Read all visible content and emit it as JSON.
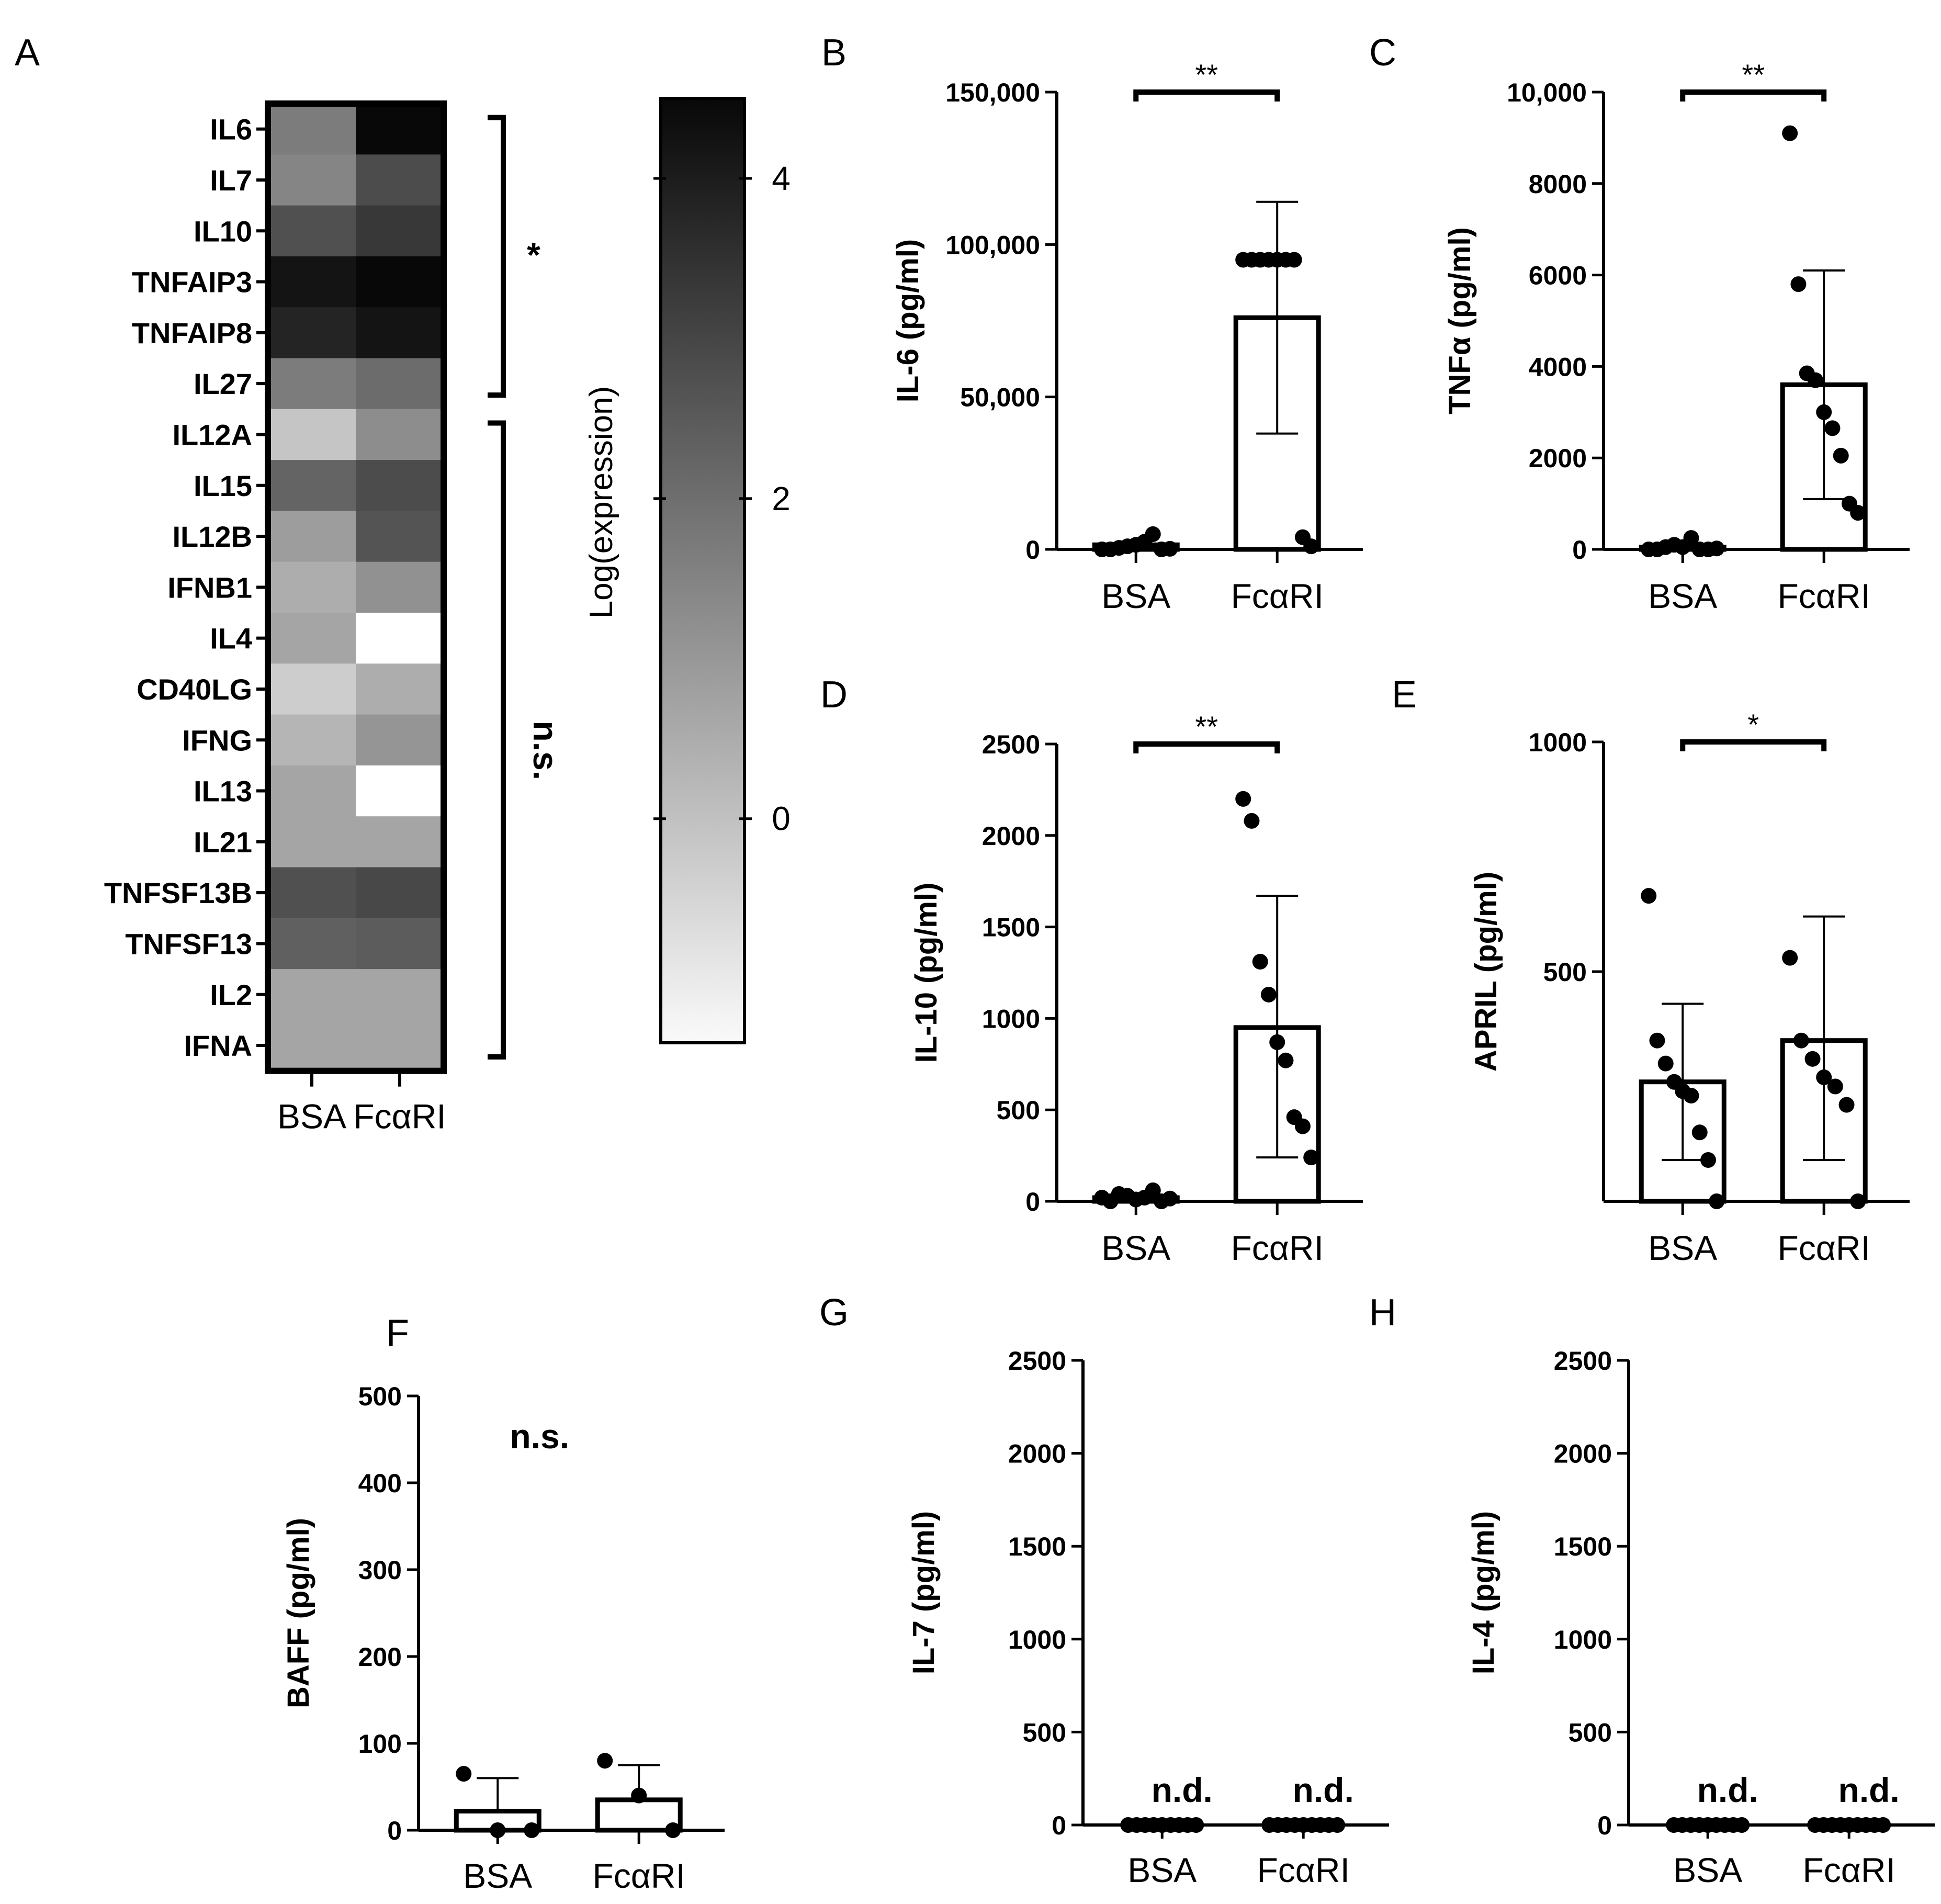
{
  "chart_data": [
    {
      "panel": "A",
      "type": "heatmap",
      "rows": [
        "IL6",
        "IL7",
        "IL10",
        "TNFAIP3",
        "TNFAIP8",
        "IL27",
        "IL12A",
        "IL15",
        "IL12B",
        "IFNB1",
        "IL4",
        "CD40LG",
        "IFNG",
        "IL13",
        "IL21",
        "TNFSF13B",
        "TNFSF13",
        "IL2",
        "IFNA"
      ],
      "columns": [
        "BSA",
        "FcαRI"
      ],
      "values": [
        [
          1.6,
          4.5
        ],
        [
          1.4,
          2.8
        ],
        [
          2.7,
          3.3
        ],
        [
          4.2,
          4.7
        ],
        [
          3.8,
          4.2
        ],
        [
          1.6,
          2.0
        ],
        [
          -0.2,
          1.2
        ],
        [
          2.2,
          2.8
        ],
        [
          0.8,
          2.6
        ],
        [
          0.4,
          1.1
        ],
        [
          0.6,
          null
        ],
        [
          -0.4,
          0.4
        ],
        [
          0.2,
          1.0
        ],
        [
          0.6,
          null
        ],
        [
          0.6,
          0.6
        ],
        [
          2.7,
          2.9
        ],
        [
          2.3,
          2.4
        ],
        [
          0.6,
          0.6
        ],
        [
          0.6,
          0.6
        ]
      ],
      "colorbar": {
        "label": "Log(expression)",
        "ticks": [
          4,
          2,
          0
        ],
        "range": [
          -1.4,
          4.5
        ]
      },
      "groups": [
        {
          "label": "*",
          "rows": [
            "IL6",
            "IL27"
          ]
        },
        {
          "label": "n.s.",
          "rows": [
            "IL12A",
            "IFNA"
          ]
        }
      ]
    },
    {
      "panel": "B",
      "type": "bar",
      "categories": [
        "BSA",
        "FcαRI"
      ],
      "ylabel": "IL-6 (pg/ml)",
      "ylim": [
        0,
        150000
      ],
      "yticks": [
        "0",
        "50,000",
        "100,000",
        "150,000"
      ],
      "yticks_values": [
        0,
        50000,
        100000,
        150000
      ],
      "values": [
        1500,
        76000
      ],
      "err_high": [
        null,
        114000
      ],
      "err_low": [
        null,
        38000
      ],
      "points": [
        [
          0,
          0,
          500,
          1000,
          1500,
          2500,
          5000,
          0,
          200
        ],
        [
          95000,
          95000,
          95000,
          95000,
          95000,
          95000,
          95000,
          4000,
          1000
        ]
      ],
      "significance": "**",
      "annotations": []
    },
    {
      "panel": "C",
      "type": "bar",
      "categories": [
        "BSA",
        "FcαRI"
      ],
      "ylabel": "TNFα (pg/ml)",
      "ylim": [
        0,
        10000
      ],
      "yticks": [
        "0",
        "2000",
        "4000",
        "6000",
        "8000",
        "10,000"
      ],
      "yticks_values": [
        0,
        2000,
        4000,
        6000,
        8000,
        10000
      ],
      "values": [
        50,
        3600
      ],
      "err_high": [
        null,
        6100
      ],
      "err_low": [
        null,
        1100
      ],
      "points": [
        [
          0,
          0,
          50,
          100,
          50,
          250,
          0,
          0,
          20
        ],
        [
          9100,
          5800,
          3850,
          3700,
          3000,
          2650,
          2050,
          1000,
          800
        ]
      ],
      "significance": "**",
      "annotations": []
    },
    {
      "panel": "D",
      "type": "bar",
      "categories": [
        "BSA",
        "FcαRI"
      ],
      "ylabel": "IL-10 (pg/ml)",
      "ylim": [
        0,
        2500
      ],
      "yticks": [
        "0",
        "500",
        "1000",
        "1500",
        "2000",
        "2500"
      ],
      "yticks_values": [
        0,
        500,
        1000,
        1500,
        2000,
        2500
      ],
      "values": [
        20,
        950
      ],
      "err_high": [
        null,
        1670
      ],
      "err_low": [
        null,
        240
      ],
      "points": [
        [
          20,
          0,
          40,
          30,
          10,
          20,
          60,
          0,
          15
        ],
        [
          2200,
          2080,
          1310,
          1130,
          870,
          770,
          460,
          410,
          240
        ]
      ],
      "significance": "**",
      "annotations": []
    },
    {
      "panel": "E",
      "type": "bar",
      "categories": [
        "BSA",
        "FcαRI"
      ],
      "ylabel": "APRIL (pg/ml)",
      "ylim": [
        0,
        1000
      ],
      "yticks": [
        "500",
        "1000"
      ],
      "yticks_values": [
        500,
        1000
      ],
      "values": [
        260,
        350
      ],
      "err_high": [
        430,
        620
      ],
      "err_low": [
        90,
        90
      ],
      "points": [
        [
          665,
          350,
          300,
          260,
          240,
          230,
          150,
          90,
          0
        ],
        [
          530,
          350,
          310,
          270,
          250,
          210,
          0
        ]
      ],
      "significance": "*",
      "annotations": []
    },
    {
      "panel": "F",
      "type": "bar",
      "categories": [
        "BSA",
        "FcαRI"
      ],
      "ylabel": "BAFF (pg/ml)",
      "ylim": [
        0,
        500
      ],
      "yticks": [
        "0",
        "100",
        "200",
        "300",
        "400",
        "500"
      ],
      "yticks_values": [
        0,
        100,
        200,
        300,
        400,
        500
      ],
      "values": [
        22,
        35
      ],
      "err_high": [
        60,
        75
      ],
      "err_low": [
        null,
        null
      ],
      "points": [
        [
          65,
          0,
          0
        ],
        [
          80,
          40,
          0
        ]
      ],
      "significance": "",
      "annotations": [
        "n.s."
      ]
    },
    {
      "panel": "G",
      "type": "bar",
      "categories": [
        "BSA",
        "FcαRI"
      ],
      "ylabel": "IL-7 (pg/ml)",
      "ylim": [
        0,
        2500
      ],
      "yticks": [
        "0",
        "500",
        "1000",
        "1500",
        "2000",
        "2500"
      ],
      "yticks_values": [
        0,
        500,
        1000,
        1500,
        2000,
        2500
      ],
      "values": [
        0,
        0
      ],
      "err_high": [
        null,
        null
      ],
      "err_low": [
        null,
        null
      ],
      "points": [
        [
          0,
          0,
          0,
          0,
          0,
          0,
          0,
          0,
          0
        ],
        [
          0,
          0,
          0,
          0,
          0,
          0,
          0,
          0,
          0
        ]
      ],
      "significance": "",
      "annotations": [
        "n.d.",
        "n.d."
      ]
    },
    {
      "panel": "H",
      "type": "bar",
      "categories": [
        "BSA",
        "FcαRI"
      ],
      "ylabel": "IL-4 (pg/ml)",
      "ylim": [
        0,
        2500
      ],
      "yticks": [
        "0",
        "500",
        "1000",
        "1500",
        "2000",
        "2500"
      ],
      "yticks_values": [
        0,
        500,
        1000,
        1500,
        2000,
        2500
      ],
      "values": [
        0,
        0
      ],
      "err_high": [
        null,
        null
      ],
      "err_low": [
        null,
        null
      ],
      "points": [
        [
          0,
          0,
          0,
          0,
          0,
          0,
          0,
          0,
          0
        ],
        [
          0,
          0,
          0,
          0,
          0,
          0,
          0,
          0,
          0
        ]
      ],
      "significance": "",
      "annotations": [
        "n.d.",
        "n.d."
      ]
    }
  ]
}
